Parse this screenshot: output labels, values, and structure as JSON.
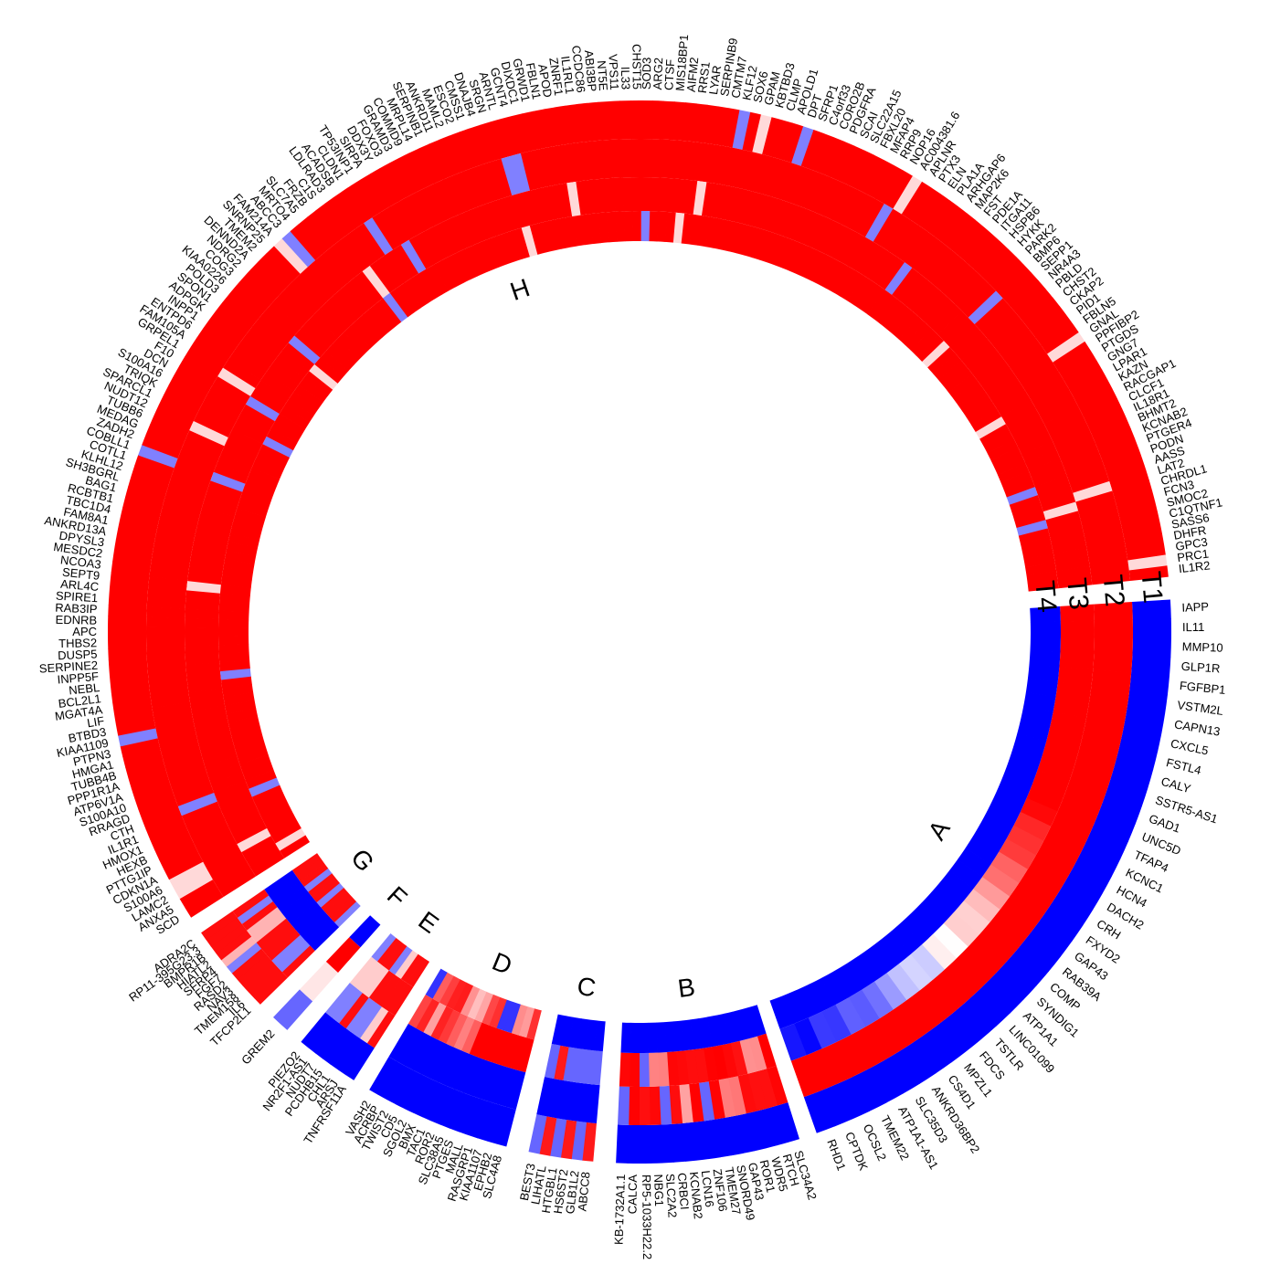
{
  "chart_data": {
    "type": "heatmap",
    "layout": "circular",
    "tracks": [
      "T1",
      "T2",
      "T3",
      "T4"
    ],
    "colors": {
      "low": "#0000ff",
      "mid": "#ffffff",
      "high": "#ff0000"
    },
    "clusters": [
      {
        "name": "A",
        "angles": [
          -3.5,
          70.5
        ],
        "pattern": "A",
        "genes": [
          "IAPP",
          "IL11",
          "MMP10",
          "GLP1R",
          "FGFBP1",
          "VSTM2L",
          "CAPN13",
          "CXCL5",
          "FSTL4",
          "CALY",
          "SSTR5-AS1",
          "GAD1",
          "UNC5D",
          "TFAP4",
          "KCNC1",
          "HCN4",
          "DACH2",
          "CRH",
          "FXYD2",
          "GAP43",
          "RAB39A",
          "COMP",
          "SYNDIG1",
          "ATP1A1",
          "LINC01099",
          "TSTLR",
          "FDCS",
          "MPZL1",
          "CS4D1",
          "ANKRD36BP2",
          "SLC35D3",
          "ATP1A1-AS1",
          "TMEM22",
          "OCSL2",
          "CPTDK",
          "RHD1"
        ]
      },
      {
        "name": "B",
        "angles": [
          72.5,
          92.5
        ],
        "pattern": "B",
        "genes": [
          "SLC34A2",
          "RTCH",
          "WDR5",
          "ROR1",
          "GAP43",
          "SNORD49",
          "TMEM27",
          "ZNF106",
          "LCN16",
          "KCNAB2",
          "CRBCI",
          "SLC2A2",
          "NBG1",
          "RP5-1033H22.2",
          "CALCA",
          "KB-1732A1.1"
        ]
      },
      {
        "name": "C",
        "angles": [
          95,
          102
        ],
        "pattern": "C",
        "genes": [
          "ABCC8",
          "GLB1L2",
          "HS6ST2",
          "HTGBL1",
          "LIHATL",
          "BEST3"
        ]
      },
      {
        "name": "D",
        "angles": [
          104.5,
          120.5
        ],
        "pattern": "D",
        "genes": [
          "SLC4A8",
          "EPHB2",
          "KIAA1107",
          "RASGRP1",
          "MALL",
          "PTGES",
          "SLC38A5",
          "ROR2",
          "TAC1",
          "BMX",
          "SGOL2",
          "CD5",
          "TWIST2",
          "ACRBP",
          "VASH2"
        ]
      },
      {
        "name": "E",
        "angles": [
          122.5,
          129.5
        ],
        "pattern": "E",
        "genes": [
          "TNFRSF11A",
          "ARSJ",
          "CHL1",
          "PCDHB15",
          "NUDT7",
          "NR2F1-AS1",
          "PIEZO2"
        ]
      },
      {
        "name": "F",
        "angles": [
          131.5,
          133.5
        ],
        "pattern": "F",
        "genes": [
          "GREM2"
        ]
      },
      {
        "name": "G",
        "angles": [
          135.5,
          145.5
        ],
        "pattern": "G",
        "genes": [
          "TFCP2L1",
          "IL6",
          "TMEM158",
          "NAV3",
          "RASD2",
          "FGF7",
          "SFRP4",
          "HIATL2",
          "BMPR1B",
          "RP11-395G23.3",
          "ADRA2C"
        ]
      },
      {
        "name": "H",
        "angles": [
          147.5,
          354
        ],
        "pattern": "H",
        "genes": [
          "SCD",
          "ANXA5",
          "LAMC2",
          "S100A6",
          "CDKN1A",
          "PTTG1IP",
          "HEXB",
          "HMOX1",
          "IL1R1",
          "CTH",
          "RRAGD",
          "S100A10",
          "ATP6V1A",
          "PPP1R1A",
          "TUBB4B",
          "HMGA1",
          "PTPN3",
          "KIAA1109",
          "BTBD3",
          "LIF",
          "MGAT4A",
          "BCL2L1",
          "NEBL",
          "INPP5F",
          "SERPINE2",
          "DUSP5",
          "THBS2",
          "APC",
          "EDNRB",
          "RAB3IP",
          "SPIRE1",
          "ARL4C",
          "SEPT9",
          "NCOA3",
          "MESDC2",
          "DPYSL3",
          "ANKRD13A",
          "FAM8A1",
          "TBC1D4",
          "RCBTB1",
          "BAG1",
          "SH3BGRL",
          "KLHL12",
          "COTL1",
          "COBLL1",
          "ZADH2",
          "MEDAG",
          "TUBB6",
          "NUDT12",
          "SPARCL1",
          "TRIQK",
          "S100A16",
          "DCN",
          "F10",
          "GRPEL1",
          "FAM105A",
          "ENTPD6",
          "INPP1",
          "ADPGK",
          "SPON1",
          "POLD3",
          "KIAA0226",
          "COG3",
          "NDRG2",
          "DENND2A",
          "TMEM2",
          "SNRNP25",
          "FAM214A",
          "ABCC3",
          "MRTO4",
          "SLC7A5",
          "FRZB",
          "C1S",
          "LDLRAD3",
          "ACADSB",
          "CLDN1",
          "TP53INP1",
          "SIRPA",
          "DDX3Y",
          "FOXO3",
          "GRAMD3",
          "COMMD9",
          "MRPL14",
          "SERPINB1",
          "ANKRD11",
          "MAML2",
          "ESCO2",
          "CMSS1",
          "DNAJB4",
          "SRGN",
          "ARNTL",
          "GCNT4",
          "DIXDC1",
          "GRWD1",
          "FBLN1",
          "APOD",
          "ZNRF1",
          "IL1RL1",
          "CCDC86",
          "ABI3BP",
          "NT5E",
          "VPS11",
          "IL33",
          "CHST15",
          "SOD3",
          "ARG2",
          "CTSF",
          "MIS18BP1",
          "AIFM2",
          "RRS1",
          "LYAR",
          "SERPINB9",
          "CMTM7",
          "KLF12",
          "SOX6",
          "GPAM",
          "KBTBD3",
          "CLMP",
          "APOLD1",
          "DPT",
          "SFRP1",
          "C4orf33",
          "CORO2B",
          "PDGFRA",
          "SCAI",
          "SLC22A15",
          "FBXL20",
          "MFAP4",
          "RRP9",
          "NOP16",
          "AC004381.6",
          "APLNR",
          "PTX3",
          "ELN",
          "PLA1A",
          "ARHGAP6",
          "MAP2K6",
          "FST",
          "PDE1A",
          "ITGA11",
          "HSPB6",
          "HYKK",
          "PARK2",
          "BMP6",
          "SEPP1",
          "NR4A3",
          "PBLD",
          "CHST2",
          "CKAP2",
          "PID1",
          "FBLN5",
          "GNAL",
          "PPFIBP2",
          "PTGDS",
          "GNG7",
          "LPAR1",
          "KAZN",
          "RACGAP1",
          "CLCF1",
          "IL18R1",
          "BHMT2",
          "KCNAB2",
          "PTGER4",
          "PODN",
          "AASS",
          "LAT2",
          "CHRDL1",
          "FCN3",
          "SMOC2",
          "C1QTNF1",
          "SASS6",
          "DHFR",
          "GPC3",
          "PRC1",
          "IL1R2"
        ]
      }
    ]
  }
}
